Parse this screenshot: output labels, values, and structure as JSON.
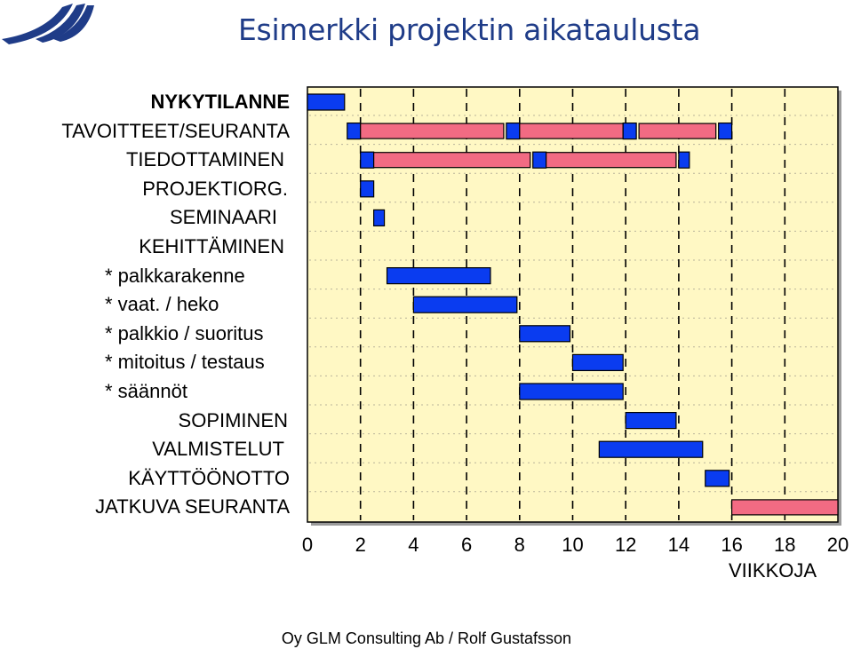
{
  "title": "Esimerkki projektin aikataulusta",
  "footer": "Oy GLM Consulting Ab / Rolf Gustafsson",
  "colors": {
    "task": "#0a3cf0",
    "recurring": "#f26b83",
    "plot_bg": "#fff8c4",
    "title": "#1f3c88"
  },
  "chart_data": {
    "type": "gantt",
    "title": "Esimerkki projektin aikataulusta",
    "xlabel": "VIIKKOJA",
    "xlim": [
      0,
      20
    ],
    "x_ticks": [
      "0",
      "2",
      "4",
      "6",
      "8",
      "10",
      "12",
      "14",
      "16",
      "18",
      "20"
    ],
    "grid": true,
    "rows": [
      {
        "label": "NYKYTILANNE",
        "bold": true,
        "indent": 0,
        "segments": [
          {
            "start": 0,
            "end": 1.4,
            "kind": "task"
          }
        ]
      },
      {
        "label": "TAVOITTEET/SEURANTA",
        "indent": 0,
        "segments": [
          {
            "start": 1.5,
            "end": 2.0,
            "kind": "task"
          },
          {
            "start": 2.0,
            "end": 7.4,
            "kind": "recurring"
          },
          {
            "start": 7.5,
            "end": 8.0,
            "kind": "task"
          },
          {
            "start": 8.0,
            "end": 11.9,
            "kind": "recurring"
          },
          {
            "start": 11.9,
            "end": 12.4,
            "kind": "task"
          },
          {
            "start": 12.5,
            "end": 15.4,
            "kind": "recurring"
          },
          {
            "start": 15.5,
            "end": 16.0,
            "kind": "task"
          }
        ]
      },
      {
        "label": "TIEDOTTAMINEN",
        "indent": 1,
        "segments": [
          {
            "start": 2.0,
            "end": 2.5,
            "kind": "task"
          },
          {
            "start": 2.5,
            "end": 8.4,
            "kind": "recurring"
          },
          {
            "start": 8.5,
            "end": 9.0,
            "kind": "task"
          },
          {
            "start": 9.0,
            "end": 13.9,
            "kind": "recurring"
          },
          {
            "start": 14.0,
            "end": 14.4,
            "kind": "task"
          }
        ]
      },
      {
        "label": "PROJEKTIORG.",
        "indent": 2,
        "segments": [
          {
            "start": 2.0,
            "end": 2.5,
            "kind": "task"
          }
        ]
      },
      {
        "label": "SEMINAARI",
        "indent": 3,
        "segments": [
          {
            "start": 2.5,
            "end": 2.9,
            "kind": "task"
          }
        ]
      },
      {
        "label": "KEHITTÄMINEN",
        "indent": 1,
        "segments": []
      },
      {
        "label": "* palkkarakenne",
        "indent": 1,
        "segments": [
          {
            "start": 3.0,
            "end": 6.9,
            "kind": "task"
          }
        ]
      },
      {
        "label": "* vaat. / heko",
        "indent": 1,
        "segments": [
          {
            "start": 4.0,
            "end": 7.9,
            "kind": "task"
          }
        ]
      },
      {
        "label": "* palkkio / suoritus",
        "indent": 1,
        "segments": [
          {
            "start": 8.0,
            "end": 9.9,
            "kind": "task"
          }
        ]
      },
      {
        "label": "* mitoitus / testaus",
        "indent": 1,
        "segments": [
          {
            "start": 10.0,
            "end": 11.9,
            "kind": "task"
          }
        ]
      },
      {
        "label": "* säännöt",
        "indent": 1,
        "segments": [
          {
            "start": 8.0,
            "end": 11.9,
            "kind": "task"
          }
        ]
      },
      {
        "label": "SOPIMINEN",
        "indent": 2,
        "segments": [
          {
            "start": 12.0,
            "end": 13.9,
            "kind": "task"
          }
        ]
      },
      {
        "label": "VALMISTELUT",
        "indent": 1,
        "segments": [
          {
            "start": 11.0,
            "end": 14.9,
            "kind": "task"
          }
        ]
      },
      {
        "label": "KÄYTTÖÖNOTTO",
        "indent": 0,
        "segments": [
          {
            "start": 15.0,
            "end": 15.9,
            "kind": "task"
          }
        ]
      },
      {
        "label": "JATKUVA SEURANTA",
        "indent": 0,
        "segments": [
          {
            "start": 16.0,
            "end": 20.0,
            "kind": "recurring"
          }
        ]
      }
    ]
  }
}
